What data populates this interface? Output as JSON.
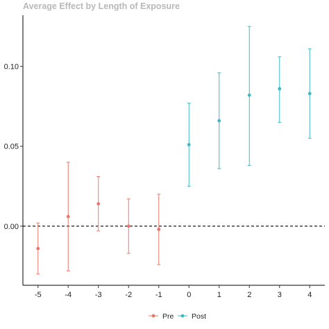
{
  "chart_data": {
    "type": "scatter",
    "title": "Average Effect by Length of Exposure",
    "xlabel": "",
    "ylabel": "",
    "x_ticks": [
      "-5",
      "-4",
      "-3",
      "-2",
      "-1",
      "0",
      "1",
      "2",
      "3",
      "4"
    ],
    "y_ticks": [
      "0.00",
      "0.05",
      "0.10"
    ],
    "xlim": [
      -5.5,
      4.5
    ],
    "ylim": [
      -0.037,
      0.132
    ],
    "reference_line": {
      "y": 0,
      "style": "dashed"
    },
    "legend": {
      "position": "bottom"
    },
    "series": [
      {
        "name": "Pre",
        "color": "#E8776E",
        "points": [
          {
            "x": -5,
            "y": -0.014,
            "lo": -0.03,
            "hi": 0.002
          },
          {
            "x": -4,
            "y": 0.006,
            "lo": -0.028,
            "hi": 0.04
          },
          {
            "x": -3,
            "y": 0.014,
            "lo": -0.003,
            "hi": 0.031
          },
          {
            "x": -2,
            "y": 0.0,
            "lo": -0.017,
            "hi": 0.017
          },
          {
            "x": -1,
            "y": -0.002,
            "lo": -0.024,
            "hi": 0.02
          }
        ]
      },
      {
        "name": "Post",
        "color": "#3FB8C4",
        "points": [
          {
            "x": 0,
            "y": 0.051,
            "lo": 0.025,
            "hi": 0.077
          },
          {
            "x": 1,
            "y": 0.066,
            "lo": 0.036,
            "hi": 0.096
          },
          {
            "x": 2,
            "y": 0.082,
            "lo": 0.038,
            "hi": 0.125
          },
          {
            "x": 3,
            "y": 0.086,
            "lo": 0.065,
            "hi": 0.106
          },
          {
            "x": 4,
            "y": 0.083,
            "lo": 0.055,
            "hi": 0.111
          }
        ]
      }
    ]
  }
}
